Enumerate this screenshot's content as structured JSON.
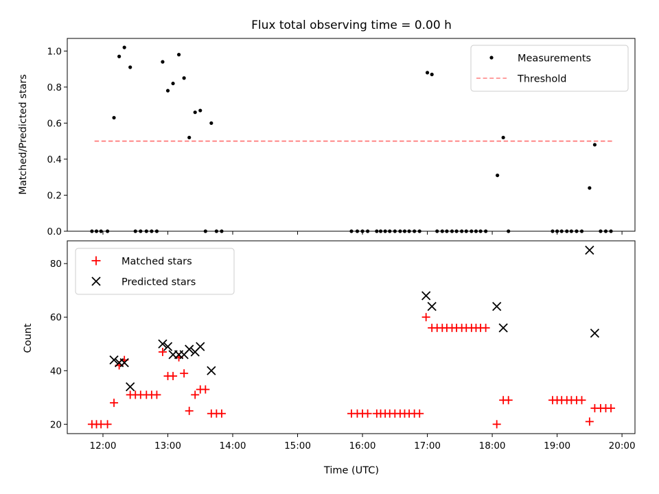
{
  "chart_data": [
    {
      "type": "scatter",
      "title": "Flux total observing time = 0.00 h",
      "xlabel": "",
      "ylabel": "Matched/Predicted stars",
      "xlim": [
        11.45,
        20.2
      ],
      "ylim": [
        0,
        1.07
      ],
      "yticks": [
        0.0,
        0.2,
        0.4,
        0.6,
        0.8,
        1.0
      ],
      "ytick_labels": [
        "0.0",
        "0.2",
        "0.4",
        "0.6",
        "0.8",
        "1.0"
      ],
      "legend_position": "upper right",
      "series": [
        {
          "name": "Measurements",
          "kind": "points",
          "color": "#000000",
          "x": [
            11.83,
            11.9,
            11.97,
            12.07,
            12.17,
            12.25,
            12.33,
            12.42,
            12.5,
            12.58,
            12.67,
            12.75,
            12.83,
            12.92,
            13.0,
            13.08,
            13.17,
            13.25,
            13.33,
            13.42,
            13.5,
            13.58,
            13.67,
            13.75,
            13.83,
            15.83,
            15.92,
            16.0,
            16.08,
            16.22,
            16.28,
            16.35,
            16.42,
            16.5,
            16.58,
            16.65,
            16.72,
            16.8,
            16.88,
            17.0,
            17.07,
            17.15,
            17.23,
            17.3,
            17.38,
            17.45,
            17.53,
            17.6,
            17.68,
            17.75,
            17.82,
            17.9,
            18.08,
            18.17,
            18.25,
            18.93,
            19.0,
            19.07,
            19.15,
            19.22,
            19.3,
            19.38,
            19.5,
            19.58,
            19.67,
            19.75,
            19.83
          ],
          "y": [
            0,
            0,
            0,
            0,
            0.63,
            0.97,
            1.02,
            0.91,
            0,
            0,
            0,
            0,
            0,
            0.94,
            0.78,
            0.82,
            0.98,
            0.85,
            0.52,
            0.66,
            0.67,
            0,
            0.6,
            0,
            0,
            0,
            0,
            0,
            0,
            0,
            0,
            0,
            0,
            0,
            0,
            0,
            0,
            0,
            0,
            0.88,
            0.87,
            0,
            0,
            0,
            0,
            0,
            0,
            0,
            0,
            0,
            0,
            0,
            0.31,
            0.52,
            0,
            0,
            0,
            0,
            0,
            0,
            0,
            0,
            0.24,
            0.48,
            0,
            0,
            0
          ]
        },
        {
          "name": "Threshold",
          "kind": "dashed-line",
          "color": "#ff7f7f",
          "x": [
            11.87,
            19.85
          ],
          "y": [
            0.5,
            0.5
          ]
        }
      ]
    },
    {
      "type": "scatter",
      "title": "",
      "xlabel": "Time (UTC)",
      "ylabel": "Count",
      "xlim": [
        11.45,
        20.2
      ],
      "ylim": [
        16.5,
        88.5
      ],
      "yticks": [
        20,
        40,
        60,
        80
      ],
      "ytick_labels": [
        "20",
        "40",
        "60",
        "80"
      ],
      "xticks": [
        12,
        13,
        14,
        15,
        16,
        17,
        18,
        19,
        20
      ],
      "xtick_labels": [
        "12:00",
        "13:00",
        "14:00",
        "15:00",
        "16:00",
        "17:00",
        "18:00",
        "19:00",
        "20:00"
      ],
      "legend_position": "upper left",
      "series": [
        {
          "name": "Matched stars",
          "kind": "plus",
          "color": "#ff0000",
          "x": [
            11.83,
            11.9,
            11.97,
            12.07,
            12.17,
            12.25,
            12.33,
            12.42,
            12.5,
            12.58,
            12.67,
            12.75,
            12.83,
            12.92,
            13.0,
            13.08,
            13.17,
            13.25,
            13.33,
            13.42,
            13.5,
            13.58,
            13.67,
            13.75,
            13.83,
            15.83,
            15.92,
            16.0,
            16.08,
            16.22,
            16.28,
            16.35,
            16.42,
            16.5,
            16.58,
            16.65,
            16.72,
            16.8,
            16.88,
            16.98,
            17.07,
            17.15,
            17.23,
            17.3,
            17.38,
            17.45,
            17.53,
            17.6,
            17.68,
            17.75,
            17.82,
            17.9,
            18.07,
            18.17,
            18.25,
            18.93,
            19.0,
            19.07,
            19.15,
            19.22,
            19.3,
            19.38,
            19.5,
            19.58,
            19.67,
            19.75,
            19.83
          ],
          "y": [
            20,
            20,
            20,
            20,
            28,
            42,
            44,
            31,
            31,
            31,
            31,
            31,
            31,
            47,
            38,
            38,
            45,
            39,
            25,
            31,
            33,
            33,
            24,
            24,
            24,
            24,
            24,
            24,
            24,
            24,
            24,
            24,
            24,
            24,
            24,
            24,
            24,
            24,
            24,
            60,
            56,
            56,
            56,
            56,
            56,
            56,
            56,
            56,
            56,
            56,
            56,
            56,
            20,
            29,
            29,
            29,
            29,
            29,
            29,
            29,
            29,
            29,
            21,
            26,
            26,
            26,
            26
          ]
        },
        {
          "name": "Predicted stars",
          "kind": "x",
          "color": "#000000",
          "x": [
            12.17,
            12.25,
            12.33,
            12.42,
            12.92,
            13.0,
            13.08,
            13.17,
            13.25,
            13.33,
            13.42,
            13.5,
            13.67,
            16.98,
            17.07,
            18.07,
            18.17,
            19.5,
            19.58
          ],
          "y": [
            44,
            43,
            43,
            34,
            50,
            49,
            46,
            46,
            46,
            48,
            47,
            49,
            40,
            68,
            64,
            64,
            56,
            85,
            54
          ]
        }
      ]
    }
  ]
}
